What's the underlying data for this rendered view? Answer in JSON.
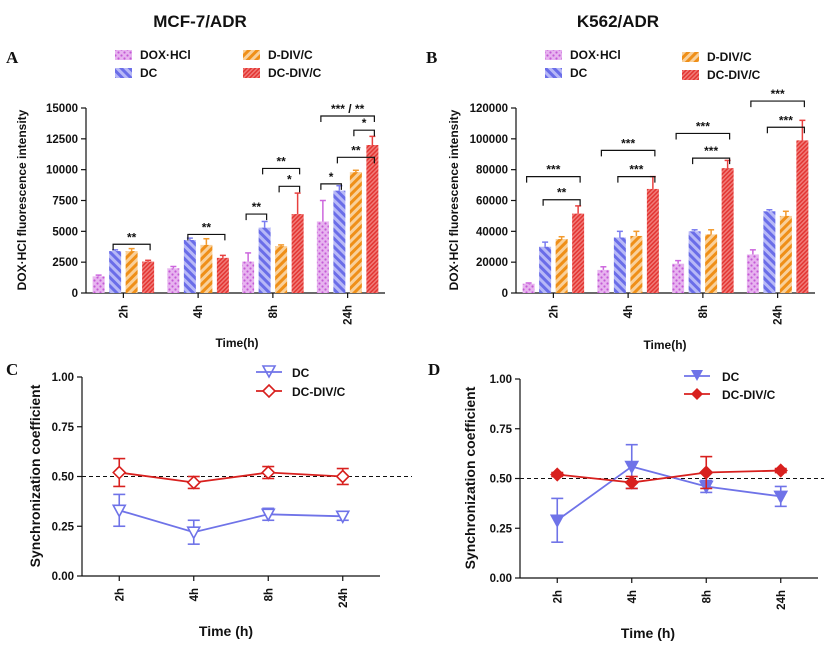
{
  "colors": {
    "dox": "#cc66dd",
    "dc": "#7a7cf0",
    "ddiv": "#f29a2e",
    "dcdiv": "#e8403f",
    "dc_line": "#6f73e8",
    "dcdiv_line": "#d8201e"
  },
  "chart_data": [
    {
      "id": "A",
      "type": "bar",
      "panel_label": "A",
      "title": "MCF-7/ADR",
      "xlabel": "Time(h)",
      "ylabel": "DOX·HCl fluorescence intensity",
      "ylim": [
        0,
        15000
      ],
      "yticks": [
        0,
        2500,
        5000,
        7500,
        10000,
        12500,
        15000
      ],
      "categories": [
        "2h",
        "4h",
        "8h",
        "24h"
      ],
      "series": [
        {
          "name": "DOX·HCl",
          "values": [
            1350,
            2000,
            2550,
            5800
          ],
          "errors": [
            100,
            150,
            700,
            1700
          ]
        },
        {
          "name": "DC",
          "values": [
            3400,
            4300,
            5300,
            8300
          ],
          "errors": [
            100,
            150,
            500,
            400
          ]
        },
        {
          "name": "D-DIV/C",
          "values": [
            3400,
            3900,
            3800,
            9800
          ],
          "errors": [
            200,
            500,
            100,
            150
          ]
        },
        {
          "name": "DC-DIV/C",
          "values": [
            2550,
            2850,
            6400,
            12000
          ],
          "errors": [
            100,
            200,
            1700,
            700
          ]
        }
      ],
      "annotations": [
        "**",
        "**",
        "**",
        "*",
        "**",
        "*",
        "**",
        "*",
        "*** / **"
      ]
    },
    {
      "id": "B",
      "type": "bar",
      "panel_label": "B",
      "title": "K562/ADR",
      "xlabel": "Time(h)",
      "ylabel": "DOX·HCl fluorescence intensity",
      "ylim": [
        0,
        120000
      ],
      "yticks": [
        0,
        20000,
        40000,
        60000,
        80000,
        100000,
        120000
      ],
      "categories": [
        "2h",
        "4h",
        "8h",
        "24h"
      ],
      "series": [
        {
          "name": "DOX·HCl",
          "values": [
            6000,
            15000,
            19000,
            25000
          ],
          "errors": [
            500,
            2000,
            2000,
            3000
          ]
        },
        {
          "name": "DC",
          "values": [
            30000,
            36000,
            40000,
            53000
          ],
          "errors": [
            3000,
            4000,
            1000,
            1000
          ]
        },
        {
          "name": "D-DIV/C",
          "values": [
            35000,
            37000,
            38000,
            50000
          ],
          "errors": [
            1500,
            3000,
            3000,
            3000
          ]
        },
        {
          "name": "DC-DIV/C",
          "values": [
            51500,
            67500,
            81000,
            99000
          ],
          "errors": [
            5000,
            8000,
            5000,
            13000
          ]
        }
      ],
      "annotations": [
        "***",
        "**",
        "***",
        "***",
        "***",
        "***",
        "***",
        "***"
      ]
    },
    {
      "id": "C",
      "type": "line",
      "panel_label": "C",
      "xlabel": "Time (h)",
      "ylabel": "Synchronization coefficient",
      "ylim": [
        0,
        1
      ],
      "yticks": [
        "0.00",
        "0.25",
        "0.50",
        "0.75",
        "1.00"
      ],
      "categories": [
        "2h",
        "4h",
        "8h",
        "24h"
      ],
      "reference_line": 0.5,
      "series": [
        {
          "name": "DC",
          "marker": "open-triangle-down",
          "values": [
            0.33,
            0.22,
            0.31,
            0.3
          ],
          "errors": [
            0.08,
            0.06,
            0.03,
            0.02
          ]
        },
        {
          "name": "DC-DIV/C",
          "marker": "open-diamond",
          "values": [
            0.52,
            0.47,
            0.52,
            0.5
          ],
          "errors": [
            0.07,
            0.03,
            0.03,
            0.04
          ]
        }
      ]
    },
    {
      "id": "D",
      "type": "line",
      "panel_label": "D",
      "xlabel": "Time (h)",
      "ylabel": "Synchronization coefficient",
      "ylim": [
        0,
        1
      ],
      "yticks": [
        "0.00",
        "0.25",
        "0.50",
        "0.75",
        "1.00"
      ],
      "categories": [
        "2h",
        "4h",
        "8h",
        "24h"
      ],
      "reference_line": 0.5,
      "series": [
        {
          "name": "DC",
          "marker": "filled-triangle-down",
          "values": [
            0.29,
            0.56,
            0.46,
            0.41
          ],
          "errors": [
            0.11,
            0.11,
            0.03,
            0.05
          ]
        },
        {
          "name": "DC-DIV/C",
          "marker": "filled-diamond",
          "values": [
            0.52,
            0.48,
            0.53,
            0.54
          ],
          "errors": [
            0.01,
            0.03,
            0.08,
            0.01
          ]
        }
      ]
    }
  ]
}
